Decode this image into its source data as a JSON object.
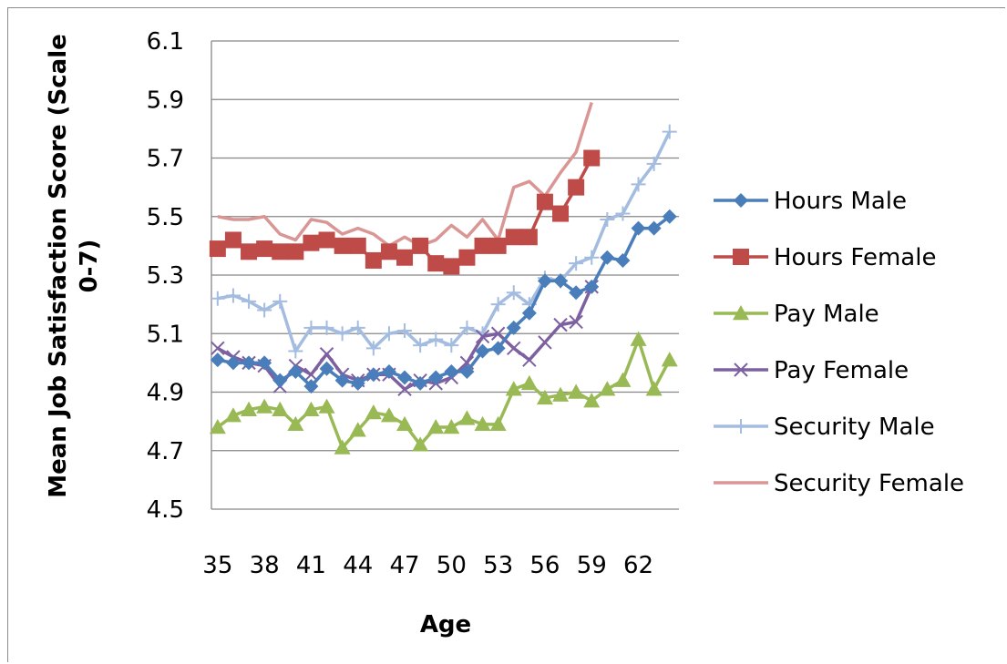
{
  "chart_data": {
    "type": "line",
    "title": "",
    "xlabel": "Age",
    "ylabel_lines": [
      "Mean Job Satisfaction Score (Scale",
      "0-7)"
    ],
    "ylim": [
      4.5,
      6.1
    ],
    "yticks": [
      4.5,
      4.7,
      4.9,
      5.1,
      5.3,
      5.5,
      5.7,
      5.9,
      6.1
    ],
    "ytick_labels": [
      "4.5",
      "4.7",
      "4.9",
      "5.1",
      "5.3",
      "5.5",
      "5.7",
      "5.9",
      "6.1"
    ],
    "x": [
      35,
      36,
      37,
      38,
      39,
      40,
      41,
      42,
      43,
      44,
      45,
      46,
      47,
      48,
      49,
      50,
      51,
      52,
      53,
      54,
      55,
      56,
      57,
      58,
      59,
      60,
      61,
      62,
      63,
      64
    ],
    "xtick_labels": [
      "35",
      "38",
      "41",
      "44",
      "47",
      "50",
      "53",
      "56",
      "59",
      "62"
    ],
    "xtick_values": [
      35,
      38,
      41,
      44,
      47,
      50,
      53,
      56,
      59,
      62
    ],
    "grid": true,
    "legend_position": "right",
    "series": [
      {
        "name": "Hours Male",
        "color": "#4a7ebb",
        "marker": "diamond",
        "values": [
          5.01,
          5.0,
          5.0,
          5.0,
          4.94,
          4.97,
          4.92,
          4.98,
          4.94,
          4.93,
          4.96,
          4.97,
          4.95,
          4.93,
          4.95,
          4.97,
          4.97,
          5.04,
          5.05,
          5.12,
          5.17,
          5.28,
          5.28,
          5.24,
          5.26,
          5.36,
          5.35,
          5.46,
          5.46,
          5.5
        ]
      },
      {
        "name": "Hours Female",
        "color": "#be4b48",
        "marker": "square",
        "values": [
          5.39,
          5.42,
          5.38,
          5.39,
          5.38,
          5.38,
          5.41,
          5.42,
          5.4,
          5.4,
          5.35,
          5.38,
          5.36,
          5.4,
          5.34,
          5.33,
          5.36,
          5.4,
          5.4,
          5.43,
          5.43,
          5.55,
          5.51,
          5.6,
          5.7,
          null,
          null,
          null,
          null,
          null
        ]
      },
      {
        "name": "Pay Male",
        "color": "#98b954",
        "marker": "triangle",
        "values": [
          4.78,
          4.82,
          4.84,
          4.85,
          4.84,
          4.79,
          4.84,
          4.85,
          4.71,
          4.77,
          4.83,
          4.82,
          4.79,
          4.72,
          4.78,
          4.78,
          4.81,
          4.79,
          4.79,
          4.91,
          4.93,
          4.88,
          4.89,
          4.9,
          4.87,
          4.91,
          4.94,
          5.08,
          4.91,
          5.01
        ]
      },
      {
        "name": "Pay Female",
        "color": "#7d60a0",
        "marker": "x",
        "values": [
          5.05,
          5.02,
          5.0,
          4.99,
          4.92,
          4.99,
          4.96,
          5.03,
          4.96,
          4.94,
          4.96,
          4.96,
          4.91,
          4.94,
          4.93,
          4.95,
          5.0,
          5.09,
          5.1,
          5.05,
          5.01,
          5.07,
          5.13,
          5.14,
          5.26,
          null,
          null,
          null,
          null,
          null
        ]
      },
      {
        "name": "Security Male",
        "color": "#a3bce0",
        "marker": "plus",
        "values": [
          5.22,
          5.23,
          5.21,
          5.18,
          5.21,
          5.04,
          5.12,
          5.12,
          5.1,
          5.12,
          5.05,
          5.1,
          5.11,
          5.06,
          5.08,
          5.06,
          5.12,
          5.1,
          5.2,
          5.24,
          5.2,
          5.29,
          5.28,
          5.34,
          5.36,
          5.49,
          5.51,
          5.61,
          5.68,
          5.79
        ]
      },
      {
        "name": "Security Female",
        "color": "#d99694",
        "marker": "none",
        "values": [
          5.5,
          5.49,
          5.49,
          5.5,
          5.44,
          5.42,
          5.49,
          5.48,
          5.44,
          5.46,
          5.44,
          5.4,
          5.43,
          5.4,
          5.42,
          5.47,
          5.43,
          5.49,
          5.42,
          5.6,
          5.62,
          5.57,
          5.65,
          5.72,
          5.89,
          null,
          null,
          null,
          null,
          null
        ]
      }
    ]
  }
}
